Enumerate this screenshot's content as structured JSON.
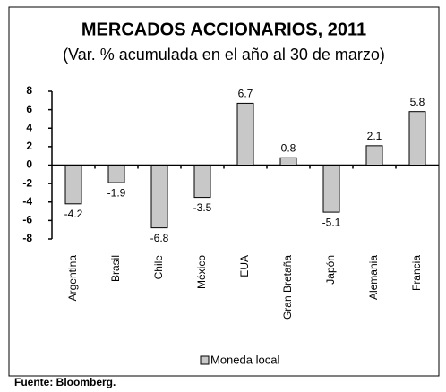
{
  "chart_data": {
    "type": "bar",
    "title": "MERCADOS ACCIONARIOS, 2011",
    "subtitle": "(Var. % acumulada en el año al 30 de marzo)",
    "categories": [
      "Argentina",
      "Brasil",
      "Chile",
      "México",
      "EUA",
      "Gran Bretaña",
      "Japón",
      "Alemania",
      "Francia"
    ],
    "series": [
      {
        "name": "Moneda local",
        "color": "#c8c8c8",
        "values": [
          -4.2,
          -1.9,
          -6.8,
          -3.5,
          6.7,
          0.8,
          -5.1,
          2.1,
          5.8
        ]
      }
    ],
    "ylim": [
      -8,
      8
    ],
    "yticks": [
      -8,
      -6,
      -4,
      -2,
      0,
      2,
      4,
      6,
      8
    ],
    "data_labels": true,
    "legend": "bottom",
    "source": "Fuente: Bloomberg."
  }
}
